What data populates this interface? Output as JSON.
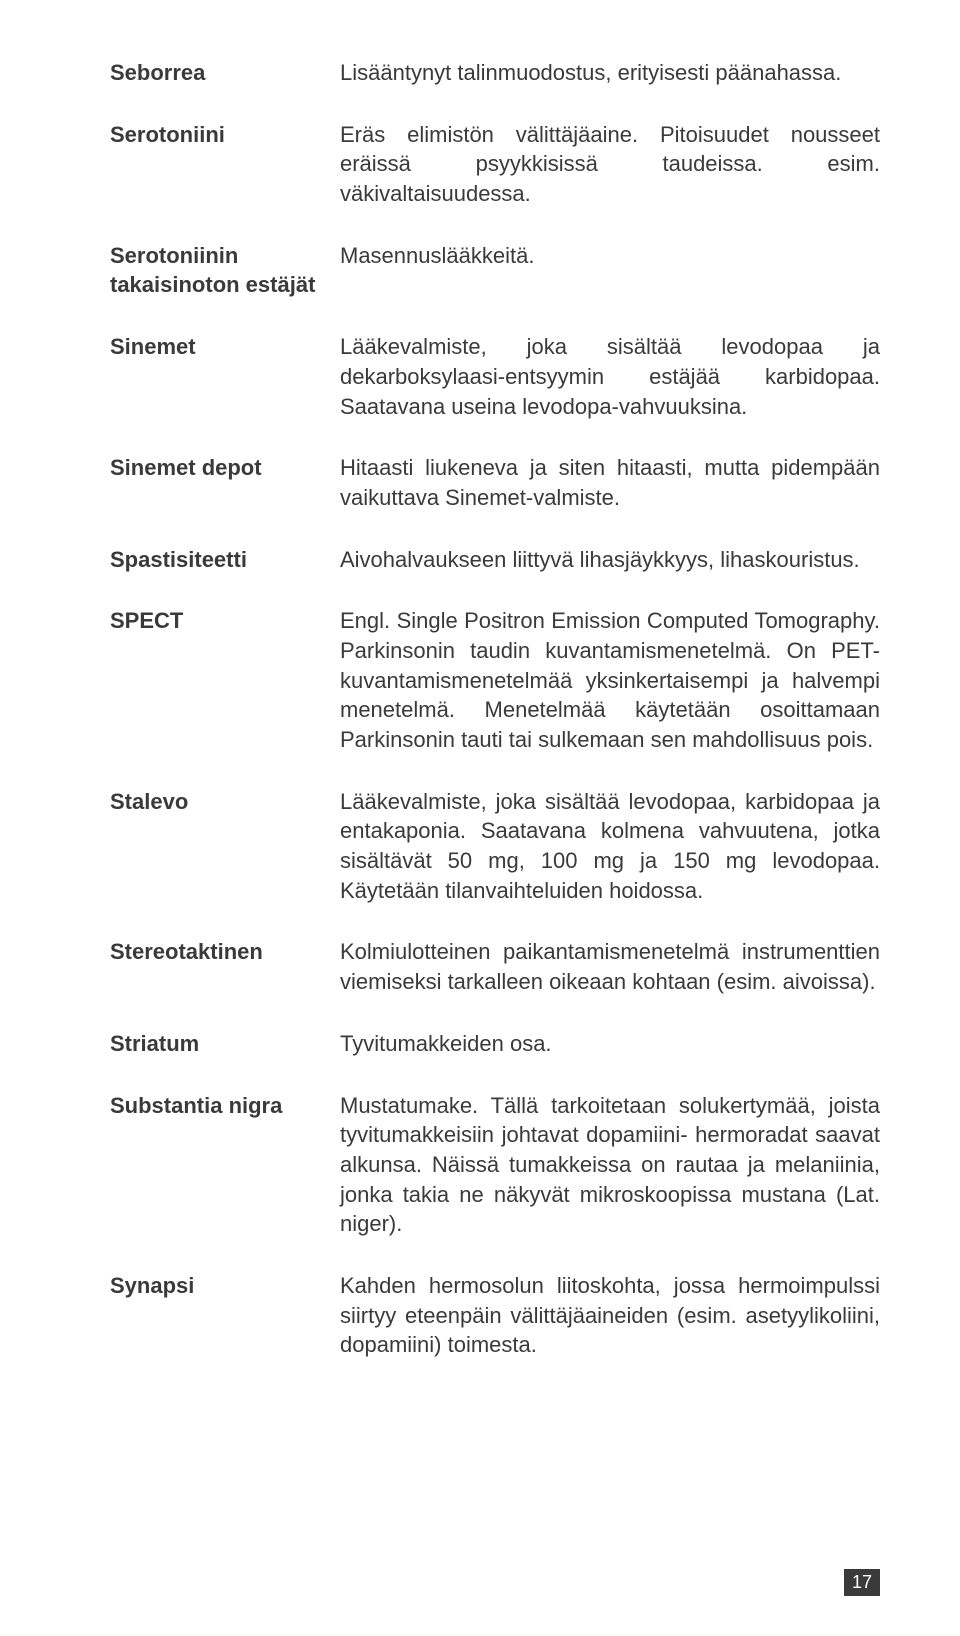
{
  "page_number": "17",
  "entries": [
    {
      "term": "Seborrea",
      "def": "Lisääntynyt talinmuodostus, erityisesti päänahassa."
    },
    {
      "term": "Serotoniini",
      "def": "Eräs elimistön välittäjäaine. Pitoisuudet nousseet eräissä psyykkisissä taudeissa. esim. väkivaltaisuudessa."
    },
    {
      "term": "Serotoniinin takaisinoton estäjät",
      "def": "Masennuslääkkeitä."
    },
    {
      "term": "Sinemet",
      "def": "Lääkevalmiste, joka sisältää levodopaa ja dekarboksylaasi-entsyymin estäjää karbidopaa. Saatavana useina levodopa-vahvuuksina."
    },
    {
      "term": "Sinemet depot",
      "def": "Hitaasti liukeneva ja siten hitaasti, mutta pidempään vaikuttava Sinemet-valmiste."
    },
    {
      "term": "Spastisiteetti",
      "def": "Aivohalvaukseen liittyvä lihasjäykkyys, lihaskouristus."
    },
    {
      "term": "SPECT",
      "def": "Engl. Single Positron Emission Computed Tomography. Parkinsonin taudin kuvantamismenetelmä. On PET-kuvantamismenetelmää yksinkertaisempi ja halvempi menetelmä. Menetelmää käytetään osoittamaan Parkinsonin tauti tai sulkemaan sen mahdollisuus pois."
    },
    {
      "term": "Stalevo",
      "def": "Lääkevalmiste, joka sisältää levodopaa, karbidopaa ja entakaponia. Saatavana kolmena vahvuutena, jotka sisältävät 50 mg, 100 mg ja 150 mg levodopaa. Käytetään tilanvaihteluiden hoidossa."
    },
    {
      "term": "Stereotaktinen",
      "def": "Kolmiulotteinen paikantamismenetelmä instrumenttien viemiseksi tarkalleen oikeaan kohtaan (esim. aivoissa)."
    },
    {
      "term": "Striatum",
      "def": "Tyvitumakkeiden osa."
    },
    {
      "term": "Substantia nigra",
      "def": "Mustatumake. Tällä tarkoitetaan solukertymää, joista tyvitumakkeisiin johtavat dopamiini- hermoradat saavat alkunsa. Näissä tumakkeissa on rautaa ja melaniinia, jonka takia ne näkyvät mikroskoopissa mustana (Lat. niger)."
    },
    {
      "term": "Synapsi",
      "def": "Kahden hermosolun liitoskohta, jossa hermoimpulssi siirtyy eteenpäin välittäjäaineiden (esim. asetyylikoliini, dopamiini) toimesta."
    }
  ]
}
